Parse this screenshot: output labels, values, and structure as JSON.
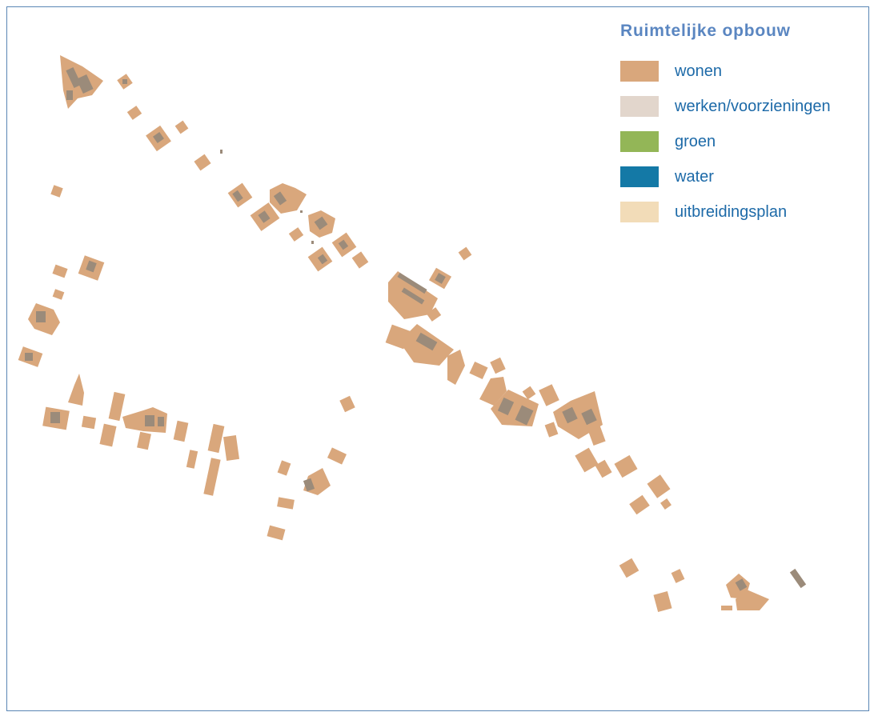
{
  "legend": {
    "title": "Ruimtelijke opbouw",
    "items": [
      {
        "key": "wonen",
        "label": "wonen",
        "color": "#d9a77c"
      },
      {
        "key": "werken",
        "label": "werken/voorzieningen",
        "color": "#e2d6cc"
      },
      {
        "key": "groen",
        "label": "groen",
        "color": "#93b657"
      },
      {
        "key": "water",
        "label": "water",
        "color": "#1479a6"
      },
      {
        "key": "uitbreidingsplan",
        "label": "uitbreidingsplan",
        "color": "#f2dcb8"
      }
    ]
  },
  "colors": {
    "parcel": "#d9a77c",
    "building": "#9b8b7a",
    "frame": "#5a86b5"
  }
}
